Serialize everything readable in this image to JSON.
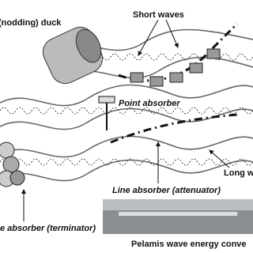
{
  "labels": {
    "duck": "(nodding) duck",
    "short_waves": "Short waves",
    "point_absorber": "Point absorber",
    "long_waves": "Long w",
    "line_absorber": "Line absorber (attenuator)",
    "terminator": "e absorber (terminator)",
    "pelamis": "Pelamis wave energy conve"
  }
}
